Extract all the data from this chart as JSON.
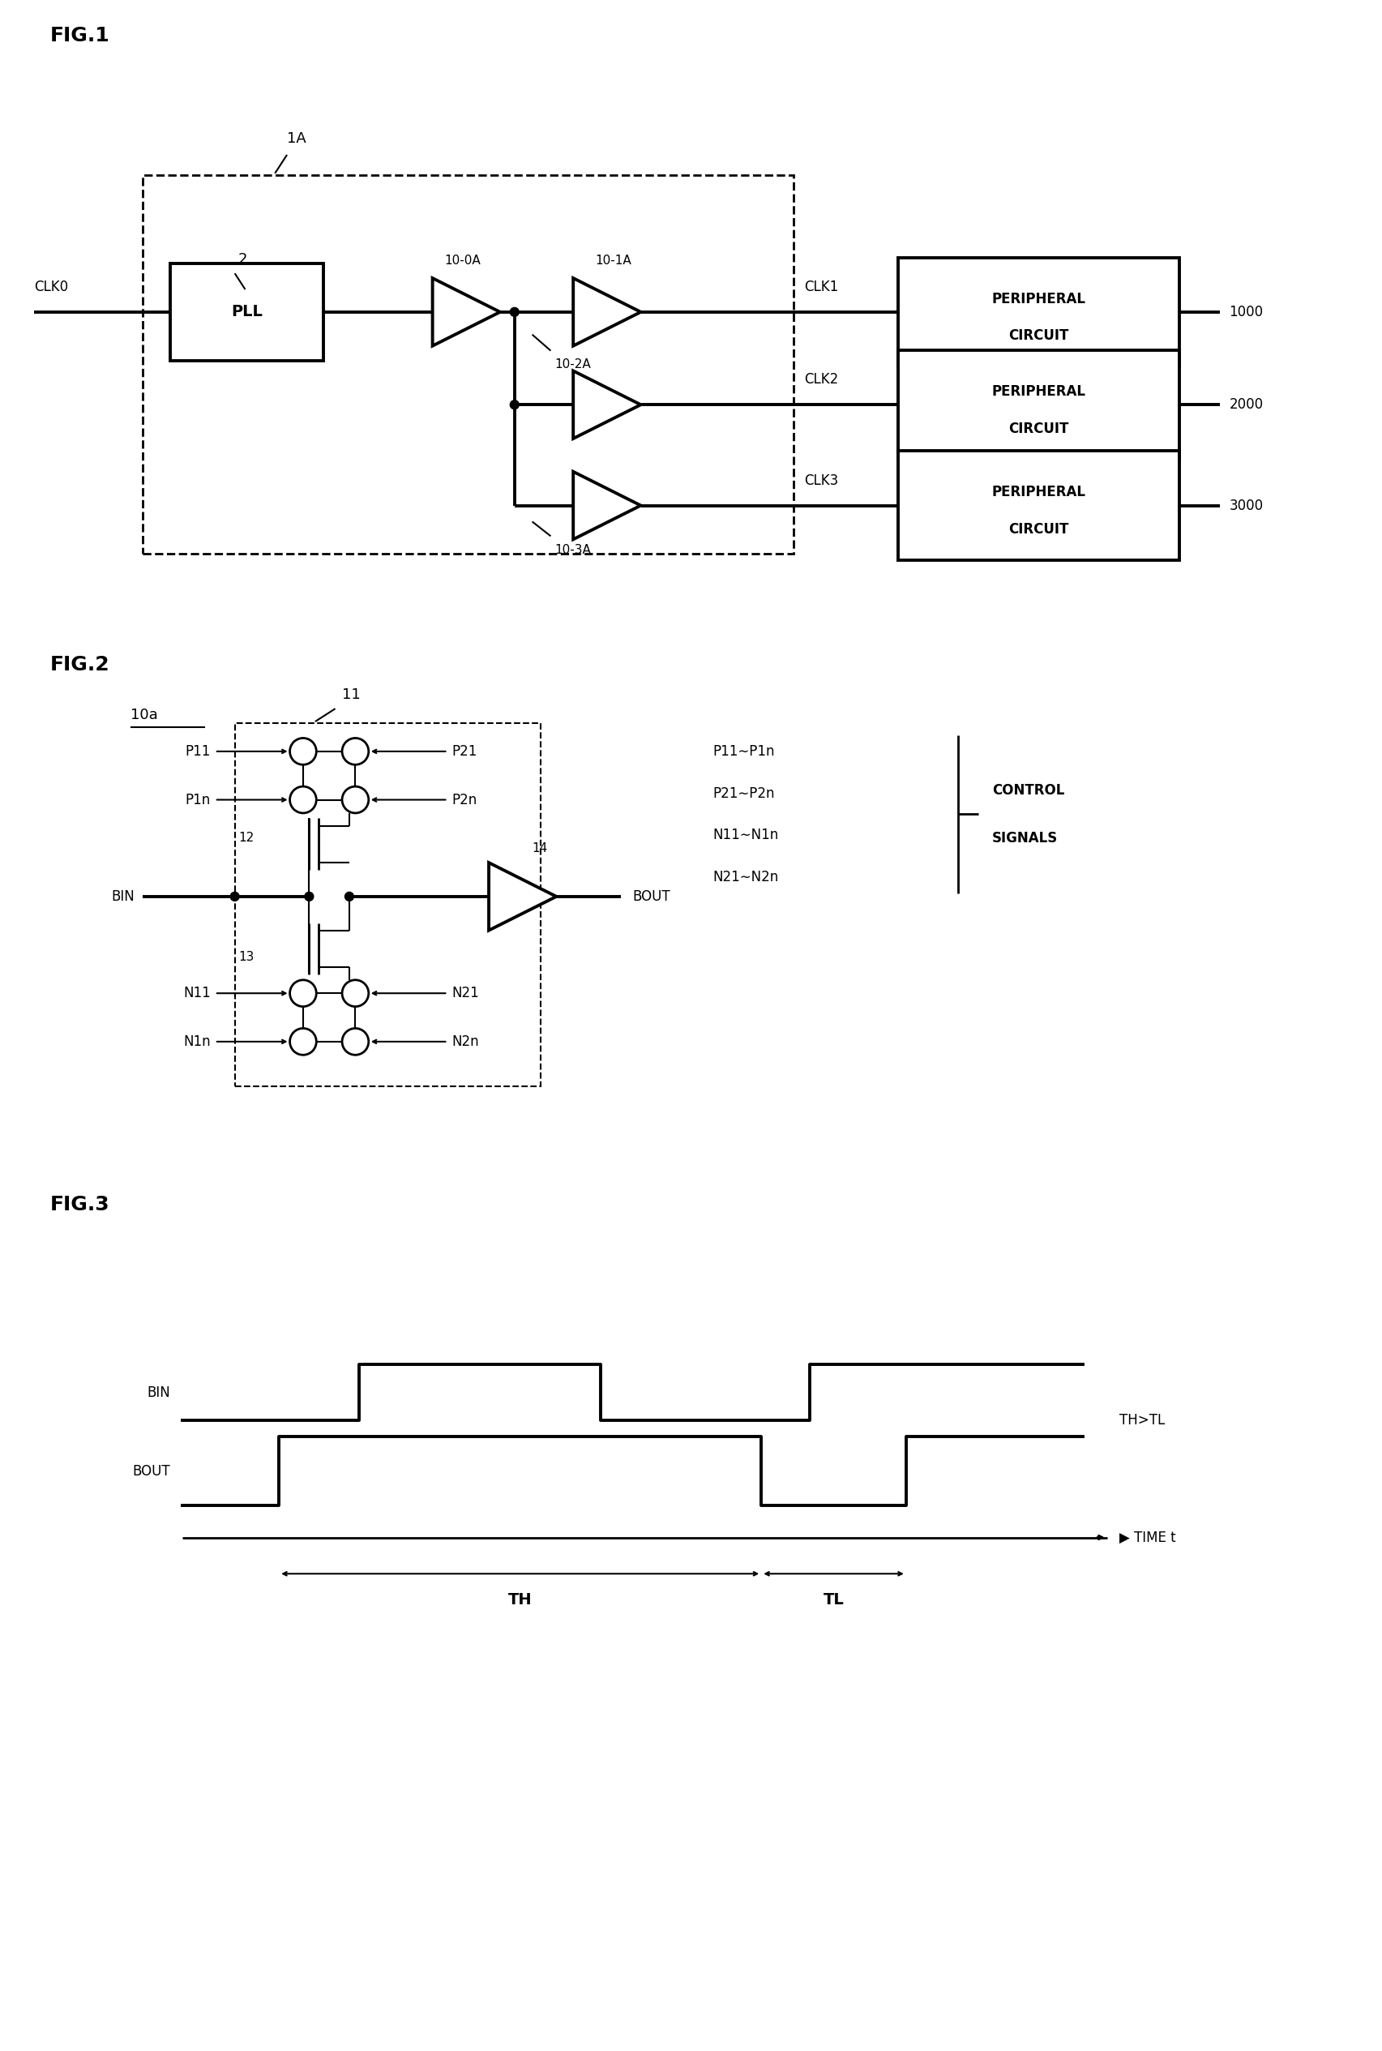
{
  "fig_width": 17.05,
  "fig_height": 25.3,
  "bg_color": "#ffffff",
  "line_color": "#000000",
  "fig1_label": "FIG.1",
  "fig2_label": "FIG.2",
  "fig3_label": "FIG.3",
  "lw_thick": 2.8,
  "lw_med": 2.0,
  "lw_thin": 1.5
}
